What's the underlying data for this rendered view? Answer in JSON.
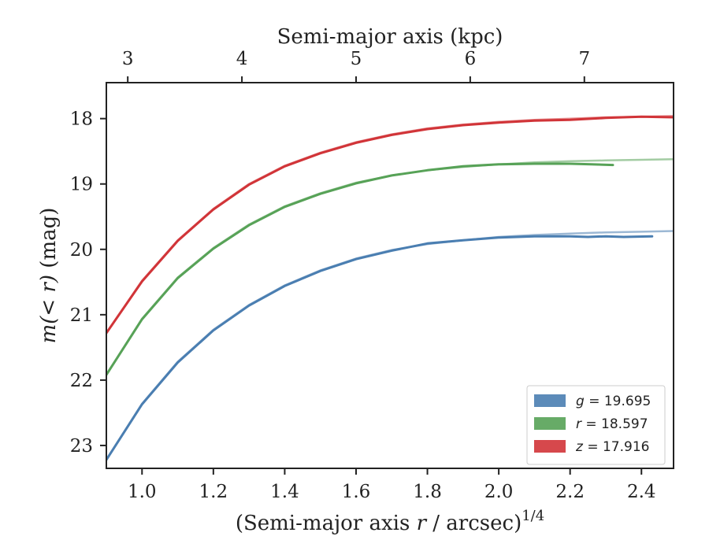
{
  "chart_data": {
    "type": "line",
    "xlabel": "(Semi-major axis r / arcsec)^1/4",
    "xlabel_parts": {
      "prefix": "(Semi-major axis ",
      "var": "r",
      "mid": " / arcsec)",
      "sup": "1/4"
    },
    "ylabel": "m(<r) (mag)",
    "ylabel_parts": {
      "math": "m(< r)",
      "suffix": " (mag)"
    },
    "x2label": "Semi-major axis (kpc)",
    "xlim": [
      0.9,
      2.49
    ],
    "ylim": [
      23.35,
      17.45
    ],
    "y_inverted": true,
    "xticks": [
      1.0,
      1.2,
      1.4,
      1.6,
      1.8,
      2.0,
      2.2,
      2.4
    ],
    "xtick_labels": [
      "1.0",
      "1.2",
      "1.4",
      "1.6",
      "1.8",
      "2.0",
      "2.2",
      "2.4"
    ],
    "yticks": [
      18,
      19,
      20,
      21,
      22,
      23
    ],
    "ytick_labels": [
      "18",
      "19",
      "20",
      "21",
      "22",
      "23"
    ],
    "x2ticks": [
      3,
      4,
      5,
      6,
      7
    ],
    "x2tick_labels": [
      "3",
      "4",
      "5",
      "6",
      "7"
    ],
    "x2tick_positions_x": [
      0.96,
      1.28,
      1.6,
      1.92,
      2.24
    ],
    "grid": false,
    "legend_position": "lower-right",
    "series": [
      {
        "name": "g = 19.695",
        "legend_var": "g",
        "legend_value": "19.695",
        "color": "#4a7eb1",
        "model_x": [
          0.9,
          1.0,
          1.1,
          1.2,
          1.3,
          1.4,
          1.5,
          1.6,
          1.7,
          1.8,
          1.9,
          2.0,
          2.1,
          2.2,
          2.3,
          2.4,
          2.49
        ],
        "model_y": [
          23.22,
          22.36,
          21.72,
          21.23,
          20.85,
          20.55,
          20.32,
          20.14,
          20.01,
          19.92,
          19.86,
          19.81,
          19.78,
          19.76,
          19.74,
          19.73,
          19.72
        ],
        "data_x": [
          0.9,
          1.0,
          1.1,
          1.2,
          1.3,
          1.4,
          1.5,
          1.6,
          1.7,
          1.8,
          1.9,
          2.0,
          2.1,
          2.2,
          2.25,
          2.3,
          2.35,
          2.43
        ],
        "data_y": [
          23.22,
          22.37,
          21.73,
          21.24,
          20.86,
          20.56,
          20.33,
          20.15,
          20.02,
          19.91,
          19.86,
          19.82,
          19.8,
          19.8,
          19.81,
          19.8,
          19.81,
          19.8
        ]
      },
      {
        "name": "r = 18.597",
        "legend_var": "r",
        "legend_value": "18.597",
        "color": "#57a257",
        "model_x": [
          0.9,
          1.0,
          1.1,
          1.2,
          1.3,
          1.4,
          1.5,
          1.6,
          1.7,
          1.8,
          1.9,
          2.0,
          2.1,
          2.2,
          2.3,
          2.4,
          2.49
        ],
        "model_y": [
          21.92,
          21.06,
          20.43,
          19.98,
          19.62,
          19.34,
          19.14,
          18.98,
          18.87,
          18.79,
          18.74,
          18.7,
          18.67,
          18.65,
          18.64,
          18.63,
          18.62
        ],
        "data_x": [
          0.9,
          1.0,
          1.1,
          1.2,
          1.3,
          1.4,
          1.5,
          1.6,
          1.7,
          1.8,
          1.9,
          2.0,
          2.1,
          2.2,
          2.26,
          2.32
        ],
        "data_y": [
          21.92,
          21.07,
          20.44,
          19.99,
          19.63,
          19.35,
          19.15,
          18.99,
          18.87,
          18.79,
          18.73,
          18.7,
          18.69,
          18.69,
          18.7,
          18.71
        ]
      },
      {
        "name": "z = 17.916",
        "legend_var": "z",
        "legend_value": "17.916",
        "color": "#d13438",
        "model_x": [
          0.9,
          1.0,
          1.1,
          1.2,
          1.3,
          1.4,
          1.5,
          1.6,
          1.7,
          1.8,
          1.9,
          2.0,
          2.1,
          2.2,
          2.3,
          2.4,
          2.49
        ],
        "model_y": [
          21.28,
          20.48,
          19.86,
          19.38,
          19.0,
          18.72,
          18.52,
          18.36,
          18.24,
          18.15,
          18.09,
          18.05,
          18.02,
          18.0,
          17.98,
          17.97,
          17.96
        ],
        "data_x": [
          0.9,
          1.0,
          1.1,
          1.2,
          1.3,
          1.4,
          1.5,
          1.6,
          1.7,
          1.8,
          1.9,
          2.0,
          2.1,
          2.2,
          2.3,
          2.4,
          2.49
        ],
        "data_y": [
          21.28,
          20.49,
          19.87,
          19.39,
          19.01,
          18.73,
          18.53,
          18.37,
          18.25,
          18.16,
          18.1,
          18.06,
          18.03,
          18.02,
          17.99,
          17.97,
          17.98
        ]
      }
    ]
  }
}
